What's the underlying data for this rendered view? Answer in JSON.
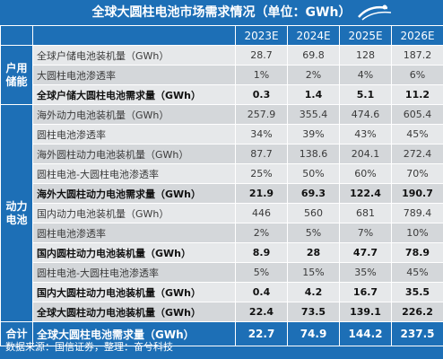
{
  "title": "全球大圆柱电池市场需求情况（单位：GWh）",
  "source": "数据来源：国信证券，整理：奋兮科技",
  "chart_data": {
    "type": "table",
    "columns": [
      "2023E",
      "2024E",
      "2025E",
      "2026E"
    ],
    "groups": [
      {
        "category": "户用储能",
        "rows": [
          {
            "label": "全球户储电池装机量（GWh）",
            "values": [
              "28.7",
              "69.8",
              "128",
              "187.2"
            ],
            "bold": false
          },
          {
            "label": "大圆柱电池渗透率",
            "values": [
              "1%",
              "2%",
              "4%",
              "6%"
            ],
            "bold": false
          },
          {
            "label": "全球户储大圆柱电池需求量（GWh）",
            "values": [
              "0.3",
              "1.4",
              "5.1",
              "11.2"
            ],
            "bold": true
          }
        ]
      },
      {
        "category": "动力电池",
        "rows": [
          {
            "label": "海外动力电池装机量（GWh）",
            "values": [
              "257.9",
              "355.4",
              "474.6",
              "605.4"
            ],
            "bold": false
          },
          {
            "label": "圆柱电池渗透率",
            "values": [
              "34%",
              "39%",
              "43%",
              "45%"
            ],
            "bold": false
          },
          {
            "label": "海外圆柱动力电池装机量（GWh）",
            "values": [
              "87.7",
              "138.6",
              "204.1",
              "272.4"
            ],
            "bold": false
          },
          {
            "label": "圆柱电池-大圆柱电池渗透率",
            "values": [
              "25%",
              "50%",
              "60%",
              "70%"
            ],
            "bold": false
          },
          {
            "label": "海外大圆柱动力电池需求量（GWh）",
            "values": [
              "21.9",
              "69.3",
              "122.4",
              "190.7"
            ],
            "bold": true
          },
          {
            "label": "国内动力电池装机量（GWh）",
            "values": [
              "446",
              "560",
              "681",
              "789.4"
            ],
            "bold": false
          },
          {
            "label": "圆柱电池渗透率",
            "values": [
              "2%",
              "5%",
              "7%",
              "10%"
            ],
            "bold": false
          },
          {
            "label": "国内圆柱动力电池装机量（GWh）",
            "values": [
              "8.9",
              "28",
              "47.7",
              "78.9"
            ],
            "bold": true
          },
          {
            "label": "圆柱电池-大圆柱电池渗透率",
            "values": [
              "5%",
              "15%",
              "35%",
              "45%"
            ],
            "bold": false
          },
          {
            "label": "国内大圆柱动力电池装机量（GWh）",
            "values": [
              "0.4",
              "4.2",
              "16.7",
              "35.5"
            ],
            "bold": true
          },
          {
            "label": "全球大圆柱动力电池装机量（GWh）",
            "values": [
              "22.4",
              "73.5",
              "139.1",
              "226.2"
            ],
            "bold": true
          }
        ]
      }
    ],
    "total": {
      "category": "合计",
      "label": "全球大圆柱电池需求量（GWh）",
      "values": [
        "22.7",
        "74.9",
        "144.2",
        "237.5"
      ]
    }
  }
}
